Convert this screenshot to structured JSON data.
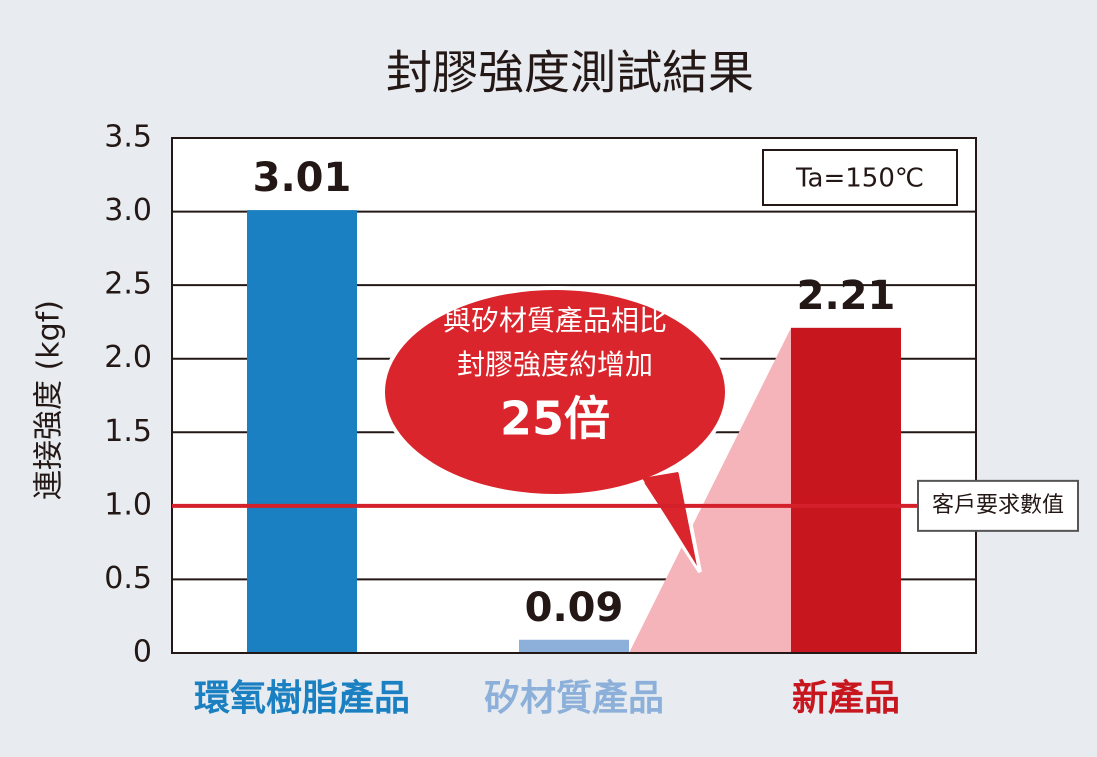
{
  "chart_data": {
    "type": "bar",
    "title": "封膠強度測試結果",
    "y_label": "連接強度 (kgf)",
    "categories": [
      "環氧樹脂產品",
      "矽材質產品",
      "新產品"
    ],
    "values": [
      3.01,
      0.09,
      2.21
    ],
    "colors": [
      "#1a80c2",
      "#8cb0d9",
      "#c8161e"
    ],
    "ylim": [
      0,
      3.5
    ],
    "yticks": [
      3.5,
      {
        "value": 3,
        "label": "3.0"
      },
      2.5,
      {
        "value": 2,
        "label": "2.0"
      },
      1.5,
      {
        "value": 1,
        "label": "1.0"
      },
      0.5,
      0
    ],
    "grid": true,
    "reference_line": {
      "value": 1,
      "label": "客戶要求數值",
      "color": "#d4202a"
    },
    "condition": "Ta=150℃",
    "callout": [
      "與矽材質產品相比",
      "封膠強度約增加",
      "25倍"
    ]
  }
}
